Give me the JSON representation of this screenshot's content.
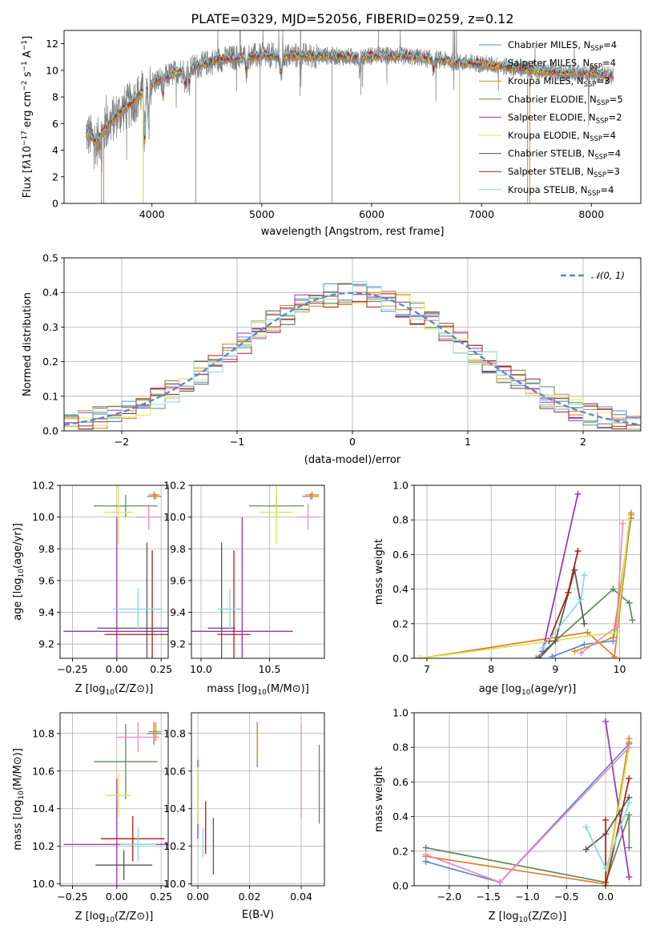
{
  "title": "PLATE=0329, MJD=52056, FIBERID=0259, z=0.12",
  "colors": {
    "Chabrier MILES": "#5b86d6",
    "Salpeter MILES": "#e27a2b",
    "Kroupa MILES": "#c8961e",
    "Chabrier ELODIE": "#5e8a5e",
    "Salpeter ELODIE": "#9b30c4",
    "Kroupa ELODIE": "#d6e84a",
    "Chabrier STELIB": "#555555",
    "Salpeter STELIB": "#b01818",
    "Kroupa STELIB": "#7fdbe0",
    "pink": "#e88cc0",
    "data": "#7f7f7f"
  },
  "chart_data": [
    {
      "id": "spectrum",
      "type": "line",
      "xlabel": "wavelength [Angstrom, rest frame]",
      "ylabel": "Flux [f_λ10^-17 erg cm^-2 s^-1 A^-1]",
      "xlim": [
        3200,
        8450
      ],
      "ylim": [
        0,
        13
      ],
      "xticks": [
        4000,
        5000,
        6000,
        7000,
        8000
      ],
      "yticks": [
        0,
        2,
        4,
        6,
        8,
        10,
        12
      ],
      "legend_position": "right",
      "legend": [
        {
          "label": "Chabrier MILES, N",
          "sub": "SSP",
          "n": "=4"
        },
        {
          "label": "Salpeter MILES, N",
          "sub": "SSP",
          "n": "=4"
        },
        {
          "label": "Kroupa MILES, N",
          "sub": "SSP",
          "n": "=3"
        },
        {
          "label": "Chabrier ELODIE, N",
          "sub": "SSP",
          "n": "=5"
        },
        {
          "label": "Salpeter ELODIE, N",
          "sub": "SSP",
          "n": "=2"
        },
        {
          "label": "Kroupa ELODIE, N",
          "sub": "SSP",
          "n": "=4"
        },
        {
          "label": "Chabrier STELIB, N",
          "sub": "SSP",
          "n": "=4"
        },
        {
          "label": "Salpeter STELIB, N",
          "sub": "SSP",
          "n": "=3"
        },
        {
          "label": "Kroupa STELIB, N",
          "sub": "SSP",
          "n": "=4"
        }
      ],
      "continuum": [
        [
          3400,
          5.3
        ],
        [
          3500,
          4.6
        ],
        [
          3600,
          5.9
        ],
        [
          3700,
          6.8
        ],
        [
          3800,
          7.4
        ],
        [
          3900,
          8.3
        ],
        [
          4000,
          9.0
        ],
        [
          4200,
          9.8
        ],
        [
          4400,
          10.3
        ],
        [
          4600,
          10.8
        ],
        [
          4800,
          11.0
        ],
        [
          5000,
          11.1
        ],
        [
          5200,
          11.1
        ],
        [
          5400,
          11.1
        ],
        [
          5600,
          11.1
        ],
        [
          5800,
          11.0
        ],
        [
          6000,
          11.1
        ],
        [
          6200,
          11.1
        ],
        [
          6400,
          11.0
        ],
        [
          6600,
          10.8
        ],
        [
          6800,
          10.6
        ],
        [
          7000,
          10.5
        ],
        [
          7200,
          10.3
        ],
        [
          7400,
          10.1
        ],
        [
          7600,
          9.9
        ],
        [
          7800,
          9.8
        ],
        [
          8000,
          9.8
        ],
        [
          8200,
          9.6
        ]
      ]
    },
    {
      "id": "residuals",
      "type": "histogram",
      "xlabel": "(data-model)/error",
      "ylabel": "Normed distribution",
      "xlim": [
        -2.5,
        2.5
      ],
      "ylim": [
        0,
        0.5
      ],
      "xticks": [
        -2,
        -1,
        0,
        1,
        2
      ],
      "yticks": [
        0.0,
        0.1,
        0.2,
        0.3,
        0.4,
        0.5
      ],
      "legend": "𝒩(0, 1)",
      "legend_position": "top-right",
      "bins": 40,
      "bin_range": [
        -2.5,
        2.5
      ]
    },
    {
      "id": "z-age",
      "type": "errorbar",
      "xlabel": "Z [log10(Z/Z⊙)]",
      "ylabel": "age [log10(age/yr)]",
      "xlim": [
        -0.32,
        0.29
      ],
      "ylim": [
        9.11,
        10.2
      ],
      "xticks": [
        -0.25,
        0.0,
        0.25
      ],
      "yticks": [
        9.2,
        9.4,
        9.6,
        9.8,
        10.0,
        10.2
      ],
      "points": [
        {
          "series": "Chabrier MILES",
          "x": 0.21,
          "y": 10.13,
          "xerr": 0.04,
          "yerr": 0.02
        },
        {
          "series": "Salpeter MILES",
          "x": 0.21,
          "y": 10.14,
          "xerr": 0.03,
          "yerr": 0.02
        },
        {
          "series": "Kroupa MILES",
          "x": 0.22,
          "y": 10.13,
          "xerr": 0.03,
          "yerr": 0.02
        },
        {
          "series": "Chabrier ELODIE",
          "x": 0.05,
          "y": 10.07,
          "xerr": 0.18,
          "yerr": 0.07
        },
        {
          "series": "Salpeter ELODIE",
          "x": 0.0,
          "y": 9.28,
          "xerr": 0.3,
          "yerr": 0.72
        },
        {
          "series": "Kroupa ELODIE",
          "x": 0.01,
          "y": 10.03,
          "xerr": 0.08,
          "yerr": 0.2
        },
        {
          "series": "Chabrier STELIB",
          "x": 0.17,
          "y": 9.3,
          "xerr": 0.28,
          "yerr": 0.54
        },
        {
          "series": "Salpeter STELIB",
          "x": 0.2,
          "y": 9.26,
          "xerr": 0.27,
          "yerr": 0.53
        },
        {
          "series": "Kroupa STELIB",
          "x": 0.12,
          "y": 9.42,
          "xerr": 0.14,
          "yerr": 0.13
        },
        {
          "series": "pink",
          "x": 0.18,
          "y": 10.0,
          "xerr": 0.07,
          "yerr": 0.08
        }
      ]
    },
    {
      "id": "mass-age",
      "type": "errorbar",
      "xlabel": "mass [log10(M/M⊙)]",
      "ylabel": "",
      "xlim": [
        9.93,
        10.9
      ],
      "ylim": [
        9.11,
        10.2
      ],
      "xticks": [
        10.0,
        10.5
      ],
      "yticks": [
        9.2,
        9.4,
        9.6,
        9.8,
        10.0,
        10.2
      ],
      "points": [
        {
          "series": "Chabrier MILES",
          "x": 10.8,
          "y": 10.13,
          "xerr": 0.06,
          "yerr": 0.02
        },
        {
          "series": "Salpeter MILES",
          "x": 10.81,
          "y": 10.14,
          "xerr": 0.05,
          "yerr": 0.02
        },
        {
          "series": "Kroupa MILES",
          "x": 10.81,
          "y": 10.13,
          "xerr": 0.05,
          "yerr": 0.02
        },
        {
          "series": "Chabrier ELODIE",
          "x": 10.55,
          "y": 10.07,
          "xerr": 0.2,
          "yerr": 0.07
        },
        {
          "series": "Salpeter ELODIE",
          "x": 10.3,
          "y": 9.28,
          "xerr": 0.37,
          "yerr": 0.72
        },
        {
          "series": "Kroupa ELODIE",
          "x": 10.55,
          "y": 10.03,
          "xerr": 0.12,
          "yerr": 0.2
        },
        {
          "series": "Chabrier STELIB",
          "x": 10.15,
          "y": 9.3,
          "xerr": 0.1,
          "yerr": 0.54
        },
        {
          "series": "Salpeter STELIB",
          "x": 10.24,
          "y": 9.26,
          "xerr": 0.12,
          "yerr": 0.53
        },
        {
          "series": "Kroupa STELIB",
          "x": 10.21,
          "y": 9.42,
          "xerr": 0.09,
          "yerr": 0.13
        },
        {
          "series": "pink",
          "x": 10.78,
          "y": 10.0,
          "xerr": 0.08,
          "yerr": 0.08
        }
      ]
    },
    {
      "id": "age-weight",
      "type": "line",
      "xlabel": "age [log10(age/yr)]",
      "ylabel": "mass weight",
      "xlim": [
        6.8,
        10.33
      ],
      "ylim": [
        0,
        1
      ],
      "xticks": [
        7,
        8,
        9,
        10
      ],
      "yticks": [
        0.0,
        0.2,
        0.4,
        0.6,
        0.8,
        1.0
      ],
      "series": [
        {
          "name": "Chabrier MILES",
          "points": [
            [
              8.95,
              0.01
            ],
            [
              9.45,
              0.08
            ],
            [
              9.9,
              0.1
            ],
            [
              10.18,
              0.81
            ]
          ]
        },
        {
          "name": "Salpeter MILES",
          "points": [
            [
              6.9,
              0.0
            ],
            [
              9.5,
              0.15
            ],
            [
              9.92,
              0.01
            ],
            [
              10.18,
              0.84
            ]
          ]
        },
        {
          "name": "Kroupa MILES",
          "points": [
            [
              9.3,
              0.04
            ],
            [
              9.9,
              0.12
            ],
            [
              10.18,
              0.83
            ]
          ]
        },
        {
          "name": "Chabrier ELODIE",
          "points": [
            [
              8.7,
              0.0
            ],
            [
              9.9,
              0.4
            ],
            [
              10.15,
              0.32
            ],
            [
              10.2,
              0.22
            ]
          ]
        },
        {
          "name": "Salpeter ELODIE",
          "points": [
            [
              8.8,
              0.04
            ],
            [
              9.35,
              0.95
            ]
          ]
        },
        {
          "name": "Kroupa ELODIE",
          "points": [
            [
              6.9,
              0.0
            ],
            [
              9.95,
              0.15
            ],
            [
              10.15,
              0.8
            ]
          ]
        },
        {
          "name": "Chabrier STELIB",
          "points": [
            [
              8.75,
              0.0
            ],
            [
              9.0,
              0.1
            ],
            [
              9.3,
              0.51
            ],
            [
              9.45,
              0.2
            ]
          ]
        },
        {
          "name": "Salpeter STELIB",
          "points": [
            [
              8.9,
              0.1
            ],
            [
              9.2,
              0.38
            ],
            [
              9.35,
              0.62
            ]
          ]
        },
        {
          "name": "Kroupa STELIB",
          "points": [
            [
              8.8,
              0.06
            ],
            [
              9.4,
              0.34
            ],
            [
              9.45,
              0.48
            ]
          ]
        },
        {
          "name": "pink",
          "points": [
            [
              9.4,
              0.03
            ],
            [
              9.95,
              0.18
            ],
            [
              10.05,
              0.78
            ]
          ]
        }
      ]
    },
    {
      "id": "z-mass",
      "type": "errorbar",
      "xlabel": "Z [log10(Z/Z⊙)]",
      "ylabel": "mass [log10(M/M⊙)]",
      "xlim": [
        -0.32,
        0.29
      ],
      "ylim": [
        9.99,
        10.91
      ],
      "xticks": [
        -0.25,
        0.0,
        0.25
      ],
      "yticks": [
        10.0,
        10.2,
        10.4,
        10.6,
        10.8
      ],
      "points": [
        {
          "series": "Chabrier MILES",
          "x": 0.21,
          "y": 10.8,
          "xerr": 0.04,
          "yerr": 0.06
        },
        {
          "series": "Salpeter MILES",
          "x": 0.21,
          "y": 10.81,
          "xerr": 0.03,
          "yerr": 0.05
        },
        {
          "series": "Kroupa MILES",
          "x": 0.22,
          "y": 10.81,
          "xerr": 0.03,
          "yerr": 0.05
        },
        {
          "series": "Chabrier ELODIE",
          "x": 0.05,
          "y": 10.65,
          "xerr": 0.18,
          "yerr": 0.2
        },
        {
          "series": "Salpeter ELODIE",
          "x": 0.0,
          "y": 10.21,
          "xerr": 0.3,
          "yerr": 0.35
        },
        {
          "series": "Kroupa ELODIE",
          "x": 0.01,
          "y": 10.47,
          "xerr": 0.07,
          "yerr": 0.12
        },
        {
          "series": "Chabrier STELIB",
          "x": 0.04,
          "y": 10.1,
          "xerr": 0.16,
          "yerr": 0.08
        },
        {
          "series": "Salpeter STELIB",
          "x": 0.09,
          "y": 10.24,
          "xerr": 0.18,
          "yerr": 0.12
        },
        {
          "series": "Kroupa STELIB",
          "x": 0.12,
          "y": 10.21,
          "xerr": 0.1,
          "yerr": 0.09
        },
        {
          "series": "pink",
          "x": 0.12,
          "y": 10.78,
          "xerr": 0.12,
          "yerr": 0.08
        }
      ]
    },
    {
      "id": "ebv-mass",
      "type": "errorbar",
      "xlabel": "E(B-V)",
      "ylabel": "",
      "xlim": [
        -0.0025,
        0.049
      ],
      "ylim": [
        9.99,
        10.91
      ],
      "xticks": [
        0.0,
        0.02,
        0.04
      ],
      "yticks": [
        10.0,
        10.2,
        10.4,
        10.6,
        10.8
      ],
      "points": [
        {
          "series": "Chabrier MILES",
          "x": 0.023,
          "y": 10.74,
          "xerr": 0,
          "yerr": 0.12
        },
        {
          "series": "Salpeter MILES",
          "x": 0.023,
          "y": 10.74,
          "xerr": 0,
          "yerr": 0.11
        },
        {
          "series": "Kroupa MILES",
          "x": 0.023,
          "y": 10.74,
          "xerr": 0,
          "yerr": 0.1
        },
        {
          "series": "Chabrier ELODIE",
          "x": 0.047,
          "y": 10.53,
          "xerr": 0,
          "yerr": 0.21
        },
        {
          "series": "Salpeter ELODIE",
          "x": 0.0,
          "y": 10.45,
          "xerr": 0,
          "yerr": 0.21
        },
        {
          "series": "Kroupa ELODIE",
          "x": 0.0,
          "y": 10.47,
          "xerr": 0,
          "yerr": 0.15
        },
        {
          "series": "Chabrier STELIB",
          "x": 0.006,
          "y": 10.2,
          "xerr": 0,
          "yerr": 0.15
        },
        {
          "series": "Salpeter STELIB",
          "x": 0.003,
          "y": 10.3,
          "xerr": 0,
          "yerr": 0.14
        },
        {
          "series": "Kroupa STELIB",
          "x": 0.002,
          "y": 10.22,
          "xerr": 0,
          "yerr": 0.08
        },
        {
          "series": "pink",
          "x": 0.04,
          "y": 10.6,
          "xerr": 0,
          "yerr": 0.25
        }
      ]
    },
    {
      "id": "z-weight",
      "type": "line",
      "xlabel": "Z [log10(Z/Z⊙)]",
      "ylabel": "mass weight",
      "xlim": [
        -2.45,
        0.45
      ],
      "ylim": [
        0,
        1
      ],
      "xticks": [
        -2.0,
        -1.5,
        -1.0,
        -0.5,
        0.0
      ],
      "yticks": [
        0.0,
        0.2,
        0.4,
        0.6,
        0.8,
        1.0
      ],
      "series": [
        {
          "name": "Chabrier MILES",
          "points": [
            [
              -2.3,
              0.14
            ],
            [
              -1.35,
              0.02
            ],
            [
              0.3,
              0.82
            ]
          ]
        },
        {
          "name": "Salpeter MILES",
          "points": [
            [
              -2.3,
              0.17
            ],
            [
              0.0,
              0.01
            ],
            [
              0.3,
              0.85
            ]
          ]
        },
        {
          "name": "Kroupa MILES",
          "points": [
            [
              0.0,
              0.02
            ],
            [
              0.3,
              0.83
            ]
          ]
        },
        {
          "name": "Chabrier ELODIE",
          "points": [
            [
              -2.3,
              0.22
            ],
            [
              0.0,
              0.02
            ],
            [
              0.3,
              0.41
            ],
            [
              0.3,
              0.22
            ]
          ]
        },
        {
          "name": "Salpeter ELODIE",
          "points": [
            [
              0.0,
              0.95
            ],
            [
              0.3,
              0.05
            ]
          ]
        },
        {
          "name": "Kroupa ELODIE",
          "points": [
            [
              0.0,
              0.01
            ],
            [
              0.3,
              0.8
            ]
          ]
        },
        {
          "name": "Chabrier STELIB",
          "points": [
            [
              -0.25,
              0.21
            ],
            [
              0.0,
              0.3
            ],
            [
              0.3,
              0.51
            ]
          ]
        },
        {
          "name": "Salpeter STELIB",
          "points": [
            [
              0.0,
              0.38
            ],
            [
              0.0,
              0.0
            ],
            [
              0.3,
              0.62
            ]
          ]
        },
        {
          "name": "Kroupa STELIB",
          "points": [
            [
              -0.25,
              0.34
            ],
            [
              0.0,
              0.1
            ],
            [
              0.3,
              0.48
            ]
          ]
        },
        {
          "name": "pink",
          "points": [
            [
              -2.3,
              0.18
            ],
            [
              -1.35,
              0.02
            ],
            [
              0.3,
              0.8
            ]
          ]
        }
      ]
    }
  ]
}
